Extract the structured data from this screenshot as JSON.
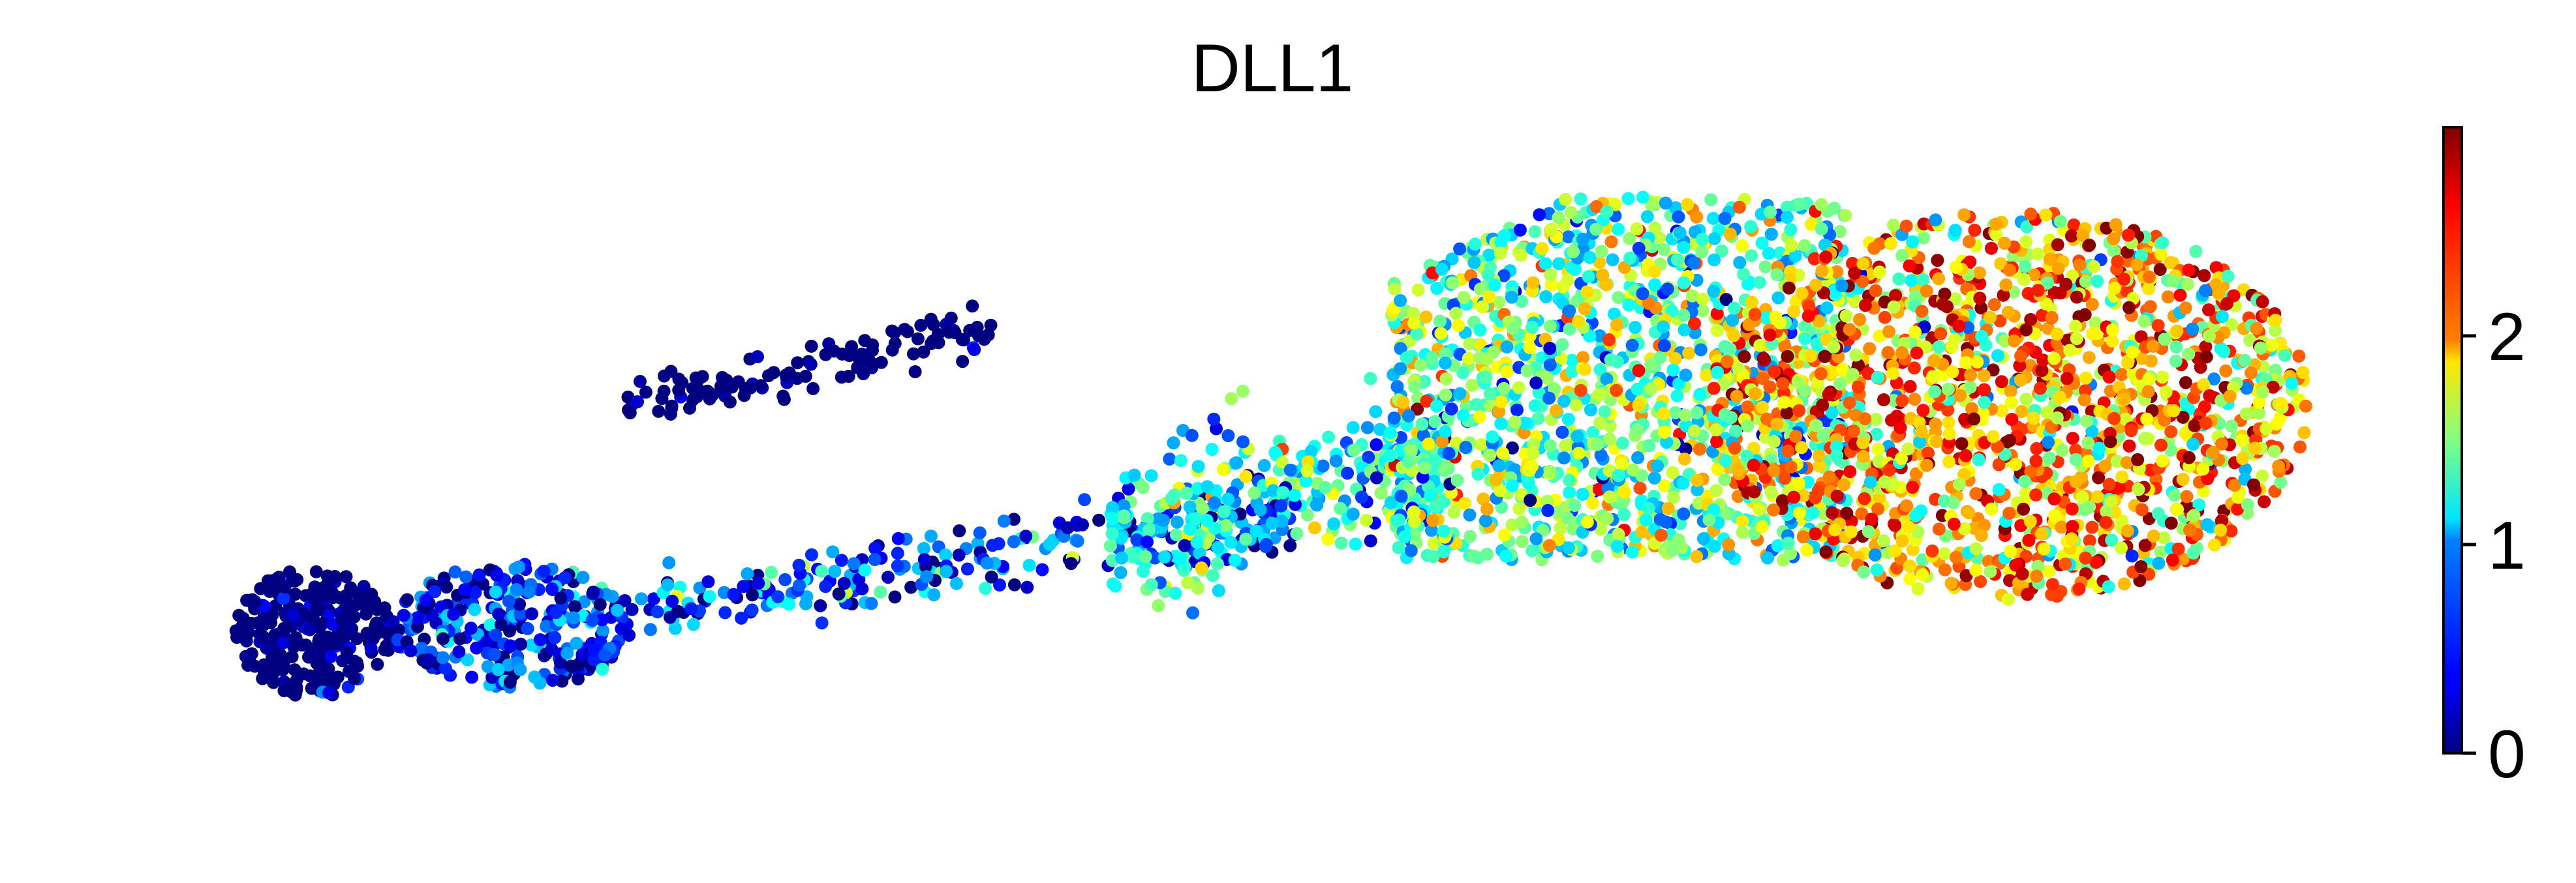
{
  "chart_data": {
    "type": "scatter",
    "title": "DLL1",
    "xlabel": "",
    "ylabel": "",
    "axes_visible": false,
    "grid": false,
    "legend": "none",
    "point_color": "expression",
    "colormap": "jet",
    "colorbar": {
      "label": "",
      "min": 0,
      "max": 3,
      "ticks": [
        0,
        1,
        2
      ],
      "tick_labels": [
        "0",
        "1",
        "2"
      ],
      "position": "right"
    },
    "colors": {
      "low": "#00007f",
      "high": "#7f0000",
      "background": "#ffffff"
    },
    "regions": [
      {
        "name": "left-blob",
        "expression_mean": 0.1
      },
      {
        "name": "left-mid-cluster",
        "expression_mean": 0.4
      },
      {
        "name": "trail",
        "expression_mean": 0.6
      },
      {
        "name": "upper-arm",
        "expression_mean": 0.1
      },
      {
        "name": "bridge",
        "expression_mean": 1.1
      },
      {
        "name": "right-middle",
        "expression_mean": 1.4
      },
      {
        "name": "right-core",
        "expression_mean": 2.1
      }
    ]
  }
}
